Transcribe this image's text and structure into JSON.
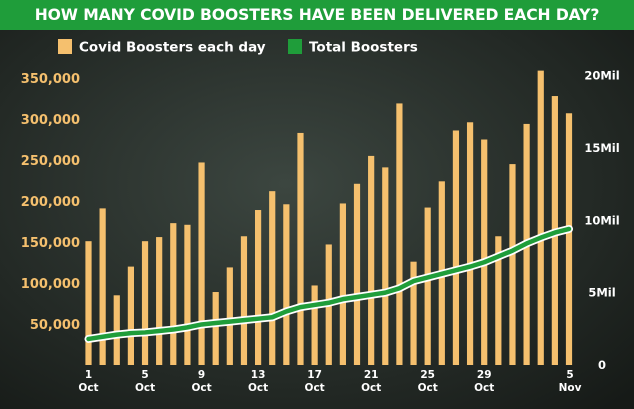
{
  "chart_data": {
    "type": "bar+line",
    "title": "HOW MANY COVID BOOSTERS HAVE BEEN DELIVERED EACH DAY?",
    "legend": {
      "placement": "top-left",
      "entries": [
        {
          "name": "Covid Boosters each day",
          "color": "#f5c06e"
        },
        {
          "name": "Total Boosters",
          "color": "#1f9d3a"
        }
      ]
    },
    "x_tick_labels": [
      {
        "index": 0,
        "top": "1",
        "bottom": "Oct"
      },
      {
        "index": 4,
        "top": "5",
        "bottom": "Oct"
      },
      {
        "index": 8,
        "top": "9",
        "bottom": "Oct"
      },
      {
        "index": 12,
        "top": "13",
        "bottom": "Oct"
      },
      {
        "index": 16,
        "top": "17",
        "bottom": "Oct"
      },
      {
        "index": 20,
        "top": "21",
        "bottom": "Oct"
      },
      {
        "index": 24,
        "top": "25",
        "bottom": "Oct"
      },
      {
        "index": 28,
        "top": "29",
        "bottom": "Oct"
      },
      {
        "index": 35,
        "top": "5",
        "bottom": "Nov"
      }
    ],
    "y_left": {
      "range": [
        0,
        400000
      ],
      "ticks": [
        {
          "value": 50000,
          "label": "50,000"
        },
        {
          "value": 100000,
          "label": "100,000"
        },
        {
          "value": 150000,
          "label": "150,000"
        },
        {
          "value": 200000,
          "label": "200,000"
        },
        {
          "value": 250000,
          "label": "250,000"
        },
        {
          "value": 300000,
          "label": "300,000"
        },
        {
          "value": 350000,
          "label": "350,000"
        }
      ]
    },
    "y_right": {
      "range": [
        0,
        22666667
      ],
      "ticks": [
        {
          "value": 0,
          "label": "0"
        },
        {
          "value": 5000000,
          "label": "5Mil"
        },
        {
          "value": 10000000,
          "label": "10Mil"
        },
        {
          "value": 15000000,
          "label": "15Mil"
        },
        {
          "value": 20000000,
          "label": "20Mil"
        }
      ]
    },
    "grid": false,
    "series": [
      {
        "name": "Covid Boosters each day",
        "type": "bar",
        "axis": "left",
        "values": [
          151000,
          191000,
          85000,
          120000,
          151000,
          156000,
          173000,
          171000,
          247000,
          89000,
          119000,
          157000,
          189000,
          212000,
          196000,
          283000,
          97000,
          147000,
          197000,
          221000,
          255000,
          241000,
          319000,
          126000,
          192000,
          224000,
          286000,
          296000,
          275000,
          157000,
          245000,
          294000,
          359000,
          328000,
          307000
        ]
      },
      {
        "name": "Total Boosters",
        "type": "line",
        "axis": "right",
        "values": [
          1800000,
          1950000,
          2100000,
          2200000,
          2250000,
          2350000,
          2450000,
          2600000,
          2800000,
          2900000,
          3000000,
          3100000,
          3200000,
          3300000,
          3700000,
          4000000,
          4150000,
          4300000,
          4550000,
          4700000,
          4850000,
          5000000,
          5300000,
          5800000,
          6050000,
          6300000,
          6550000,
          6800000,
          7100000,
          7500000,
          7900000,
          8400000,
          8800000,
          9150000,
          9400000
        ]
      }
    ]
  }
}
